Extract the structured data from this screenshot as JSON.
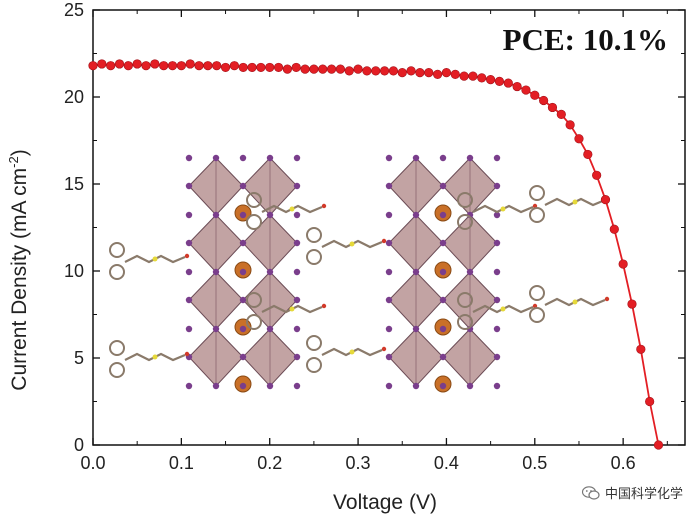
{
  "chart_data": {
    "type": "line",
    "title": "",
    "annotation": "PCE: 10.1%",
    "xlabel": "Voltage (V)",
    "ylabel_main": "Current Density (mA cm",
    "ylabel_sup": "-2",
    "ylabel_end": ")",
    "xlim": [
      0.0,
      0.67
    ],
    "ylim": [
      0,
      25
    ],
    "xticks": [
      0.0,
      0.1,
      0.2,
      0.3,
      0.4,
      0.5,
      0.6
    ],
    "xtick_labels": [
      "0.0",
      "0.1",
      "0.2",
      "0.3",
      "0.4",
      "0.5",
      "0.6"
    ],
    "yticks": [
      0,
      5,
      10,
      15,
      20,
      25
    ],
    "ytick_labels": [
      "0",
      "5",
      "10",
      "15",
      "20",
      "25"
    ],
    "series": [
      {
        "name": "J-V curve",
        "color": "#e31e24",
        "x": [
          0.0,
          0.01,
          0.02,
          0.03,
          0.04,
          0.05,
          0.06,
          0.07,
          0.08,
          0.09,
          0.1,
          0.11,
          0.12,
          0.13,
          0.14,
          0.15,
          0.16,
          0.17,
          0.18,
          0.19,
          0.2,
          0.21,
          0.22,
          0.23,
          0.24,
          0.25,
          0.26,
          0.27,
          0.28,
          0.29,
          0.3,
          0.31,
          0.32,
          0.33,
          0.34,
          0.35,
          0.36,
          0.37,
          0.38,
          0.39,
          0.4,
          0.41,
          0.42,
          0.43,
          0.44,
          0.45,
          0.46,
          0.47,
          0.48,
          0.49,
          0.5,
          0.51,
          0.52,
          0.53,
          0.54,
          0.55,
          0.56,
          0.57,
          0.58,
          0.59,
          0.6,
          0.61,
          0.62,
          0.63,
          0.64
        ],
        "y": [
          21.8,
          21.9,
          21.8,
          21.9,
          21.8,
          21.9,
          21.8,
          21.9,
          21.8,
          21.8,
          21.8,
          21.9,
          21.8,
          21.8,
          21.8,
          21.7,
          21.8,
          21.7,
          21.7,
          21.7,
          21.7,
          21.7,
          21.6,
          21.7,
          21.6,
          21.6,
          21.6,
          21.6,
          21.6,
          21.5,
          21.6,
          21.5,
          21.5,
          21.5,
          21.5,
          21.4,
          21.5,
          21.4,
          21.4,
          21.3,
          21.4,
          21.3,
          21.2,
          21.2,
          21.1,
          21.0,
          20.9,
          20.8,
          20.6,
          20.4,
          20.1,
          19.8,
          19.4,
          19.0,
          18.4,
          17.6,
          16.7,
          15.5,
          14.1,
          12.4,
          10.4,
          8.1,
          5.5,
          2.5,
          0.0
        ]
      }
    ],
    "legend": "none",
    "grid": false,
    "inset": "perovskite crystal structure (octahedral framework with organic cations)"
  },
  "colors": {
    "curve": "#e31e24",
    "octahedra": "#b48f8f",
    "halide": "#7a3e8c",
    "cation": "#c97028"
  },
  "watermark": {
    "icon": "wechat-icon",
    "text": "中国科学化学"
  }
}
